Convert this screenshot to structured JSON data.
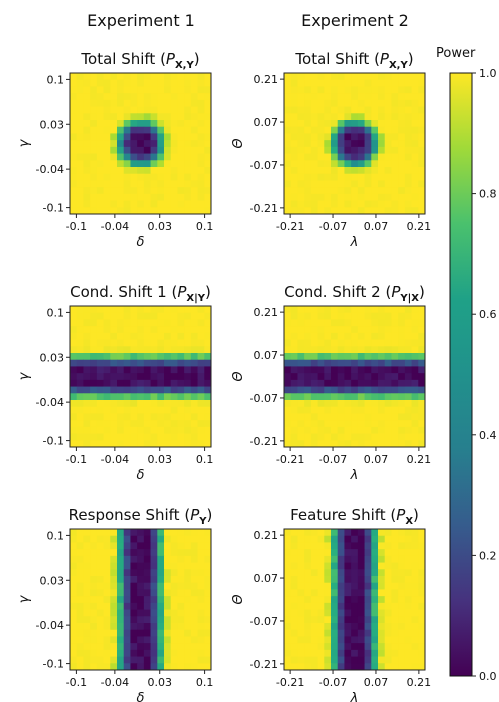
{
  "figure": {
    "column_titles": [
      "Experiment 1",
      "Experiment 2"
    ],
    "colorbar": {
      "label": "Power",
      "colormap": "viridis",
      "range": [
        0.0,
        1.0
      ],
      "ticks": [
        "0.0",
        "0.2",
        "0.4",
        "0.6",
        "0.8",
        "1.0"
      ]
    }
  },
  "chart_data": [
    {
      "type": "heatmap",
      "title": "Total Shift (P_{X,Y})",
      "title_plain": "Total Shift (",
      "title_symbol": "P",
      "title_sub": "X,Y",
      "title_close": ")",
      "xlabel": "δ",
      "ylabel": "γ",
      "xticks": [
        "-0.1",
        "-0.04",
        "0.03",
        "0.1"
      ],
      "yticks": [
        "0.1",
        "0.03",
        "-0.04",
        "-0.1"
      ],
      "xlim": [
        -0.11,
        0.11
      ],
      "ylim": [
        -0.11,
        0.11
      ],
      "grid_size": 21,
      "pattern": "radial",
      "low_power_center": [
        0.0,
        0.0
      ],
      "min_power": 0.02,
      "max_power": 1.0
    },
    {
      "type": "heatmap",
      "title": "Total Shift (P_{X,Y})",
      "title_plain": "Total Shift (",
      "title_symbol": "P",
      "title_sub": "X,Y",
      "title_close": ")",
      "xlabel": "λ",
      "ylabel": "Θ",
      "xticks": [
        "-0.21",
        "-0.07",
        "0.07",
        "0.21"
      ],
      "yticks": [
        "0.21",
        "0.07",
        "-0.07",
        "-0.21"
      ],
      "xlim": [
        -0.23,
        0.23
      ],
      "ylim": [
        -0.23,
        0.23
      ],
      "grid_size": 21,
      "pattern": "radial",
      "low_power_center": [
        0.0,
        0.0
      ],
      "min_power": 0.02,
      "max_power": 1.0
    },
    {
      "type": "heatmap",
      "title": "Cond. Shift 1 (P_{X|Y})",
      "title_plain": "Cond. Shift 1 (",
      "title_symbol": "P",
      "title_sub": "X|Y",
      "title_close": ")",
      "xlabel": "δ",
      "ylabel": "γ",
      "xticks": [
        "-0.1",
        "-0.04",
        "0.03",
        "0.1"
      ],
      "yticks": [
        "0.1",
        "0.03",
        "-0.04",
        "-0.1"
      ],
      "xlim": [
        -0.11,
        0.11
      ],
      "ylim": [
        -0.11,
        0.11
      ],
      "grid_size": 21,
      "pattern": "horizontal_band",
      "low_power_center": [
        0.0,
        0.0
      ],
      "min_power": 0.02,
      "max_power": 1.0
    },
    {
      "type": "heatmap",
      "title": "Cond. Shift 2 (P_{Y|X})",
      "title_plain": "Cond. Shift 2 (",
      "title_symbol": "P",
      "title_sub": "Y|X",
      "title_close": ")",
      "xlabel": "λ",
      "ylabel": "Θ",
      "xticks": [
        "-0.21",
        "-0.07",
        "0.07",
        "0.21"
      ],
      "yticks": [
        "0.21",
        "0.07",
        "-0.07",
        "-0.21"
      ],
      "xlim": [
        -0.23,
        0.23
      ],
      "ylim": [
        -0.23,
        0.23
      ],
      "grid_size": 21,
      "pattern": "horizontal_band",
      "low_power_center": [
        0.0,
        0.0
      ],
      "min_power": 0.02,
      "max_power": 1.0
    },
    {
      "type": "heatmap",
      "title": "Response Shift (P_Y)",
      "title_plain": "Response Shift (",
      "title_symbol": "P",
      "title_sub": "Y",
      "title_close": ")",
      "xlabel": "δ",
      "ylabel": "γ",
      "xticks": [
        "-0.1",
        "-0.04",
        "0.03",
        "0.1"
      ],
      "yticks": [
        "0.1",
        "0.03",
        "-0.04",
        "-0.1"
      ],
      "xlim": [
        -0.11,
        0.11
      ],
      "ylim": [
        -0.11,
        0.11
      ],
      "grid_size": 21,
      "pattern": "vertical_band",
      "low_power_center": [
        0.0,
        0.0
      ],
      "min_power": 0.02,
      "max_power": 1.0
    },
    {
      "type": "heatmap",
      "title": "Feature Shift (P_X)",
      "title_plain": "Feature Shift (",
      "title_symbol": "P",
      "title_sub": "X",
      "title_close": ")",
      "xlabel": "λ",
      "ylabel": "Θ",
      "xticks": [
        "-0.21",
        "-0.07",
        "0.07",
        "0.21"
      ],
      "yticks": [
        "0.21",
        "0.07",
        "-0.07",
        "-0.21"
      ],
      "xlim": [
        -0.23,
        0.23
      ],
      "ylim": [
        -0.23,
        0.23
      ],
      "grid_size": 21,
      "pattern": "vertical_band",
      "low_power_center": [
        0.0,
        0.0
      ],
      "min_power": 0.02,
      "max_power": 1.0
    }
  ]
}
